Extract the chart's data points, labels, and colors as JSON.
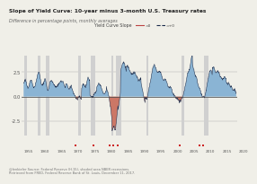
{
  "title": "Slope of Yield Curve: 10-year minus 3-month U.S. Treasury rates",
  "subtitle": "Difference in percentage points, monthly averages",
  "legend_label": "Yield Curve Slope",
  "ylim": [
    -4.0,
    4.2
  ],
  "xlim": [
    1953,
    2018
  ],
  "background_color": "#f0efe8",
  "plot_bg_color": "#f0efe8",
  "fill_pos_color": "#8ab4d4",
  "fill_neg_color": "#cc7766",
  "line_color": "#1a2a4a",
  "zero_line_color": "#444444",
  "recession_color": "#d0d0d0",
  "bar_color": "#3366aa",
  "red_marker_color": "#cc2222",
  "footer_text": "@lenkiefer Source: Federal Reserve (H.15), shaded area NBER recessions.\nRetrieved from FRED, Federal Reserve Bank of St. Louis, December 11, 2017.",
  "recessions": [
    [
      1953.6,
      1954.4
    ],
    [
      1957.7,
      1958.5
    ],
    [
      1960.3,
      1961.2
    ],
    [
      1969.9,
      1970.9
    ],
    [
      1973.9,
      1975.2
    ],
    [
      1980.0,
      1980.6
    ],
    [
      1981.5,
      1982.9
    ],
    [
      1990.6,
      1991.2
    ],
    [
      2001.2,
      2001.9
    ],
    [
      2007.9,
      2009.5
    ]
  ],
  "red_dots": [
    1969.3,
    1974.5,
    1979.5,
    1980.5,
    1981.8,
    2000.8,
    2006.7,
    2007.8
  ],
  "year_ticks": [
    1955,
    1960,
    1965,
    1970,
    1975,
    1980,
    1985,
    1990,
    1995,
    2000,
    2005,
    2010,
    2015,
    2020
  ]
}
